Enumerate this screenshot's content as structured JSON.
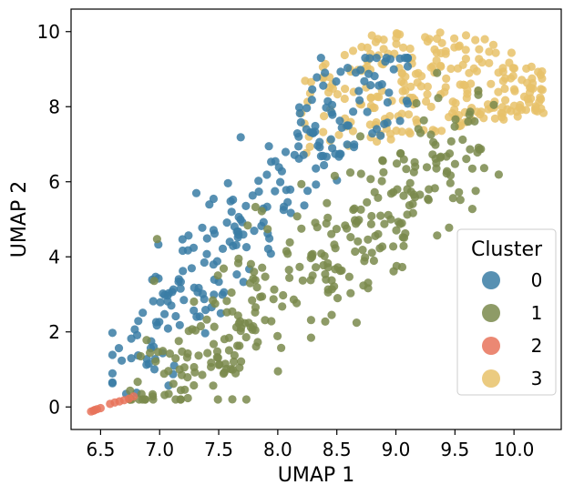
{
  "chart_data": {
    "type": "scatter",
    "xlabel": "UMAP 1",
    "ylabel": "UMAP 2",
    "xlim": [
      6.25,
      10.4
    ],
    "ylim": [
      -0.6,
      10.6
    ],
    "xticks": [
      "6.5",
      "7.0",
      "7.5",
      "8.0",
      "8.5",
      "9.0",
      "9.5",
      "10.0"
    ],
    "xtick_values": [
      6.5,
      7.0,
      7.5,
      8.0,
      8.5,
      9.0,
      9.5,
      10.0
    ],
    "yticks": [
      "0",
      "2",
      "4",
      "6",
      "8",
      "10"
    ],
    "ytick_values": [
      0,
      2,
      4,
      6,
      8,
      10
    ],
    "grid": false,
    "legend": {
      "title": "Cluster",
      "placement": "lower-right"
    },
    "series": [
      {
        "name": "0",
        "color": "#3a7ca5",
        "region": {
          "x_range": [
            6.6,
            9.1
          ],
          "y_range": [
            0.3,
            9.3
          ],
          "description": "elongated band from lower-left to upper-middle"
        },
        "n_points": 230
      },
      {
        "name": "1",
        "color": "#7a8a4c",
        "region": {
          "x_range": [
            6.7,
            10.0
          ],
          "y_range": [
            0.2,
            9.0
          ],
          "description": "band below/right of cluster 0"
        },
        "n_points": 320
      },
      {
        "name": "2",
        "color": "#e8735a",
        "points": [
          [
            6.42,
            -0.12
          ],
          [
            6.44,
            -0.1
          ],
          [
            6.45,
            -0.08
          ],
          [
            6.47,
            -0.06
          ],
          [
            6.5,
            -0.03
          ],
          [
            6.58,
            0.08
          ],
          [
            6.62,
            0.12
          ],
          [
            6.66,
            0.15
          ],
          [
            6.7,
            0.18
          ],
          [
            6.74,
            0.22
          ],
          [
            6.78,
            0.28
          ]
        ]
      },
      {
        "name": "3",
        "color": "#e8c26a",
        "region": {
          "x_range": [
            8.1,
            10.3
          ],
          "y_range": [
            6.5,
            10.1
          ],
          "description": "cap at upper right"
        },
        "n_points": 260
      }
    ]
  }
}
